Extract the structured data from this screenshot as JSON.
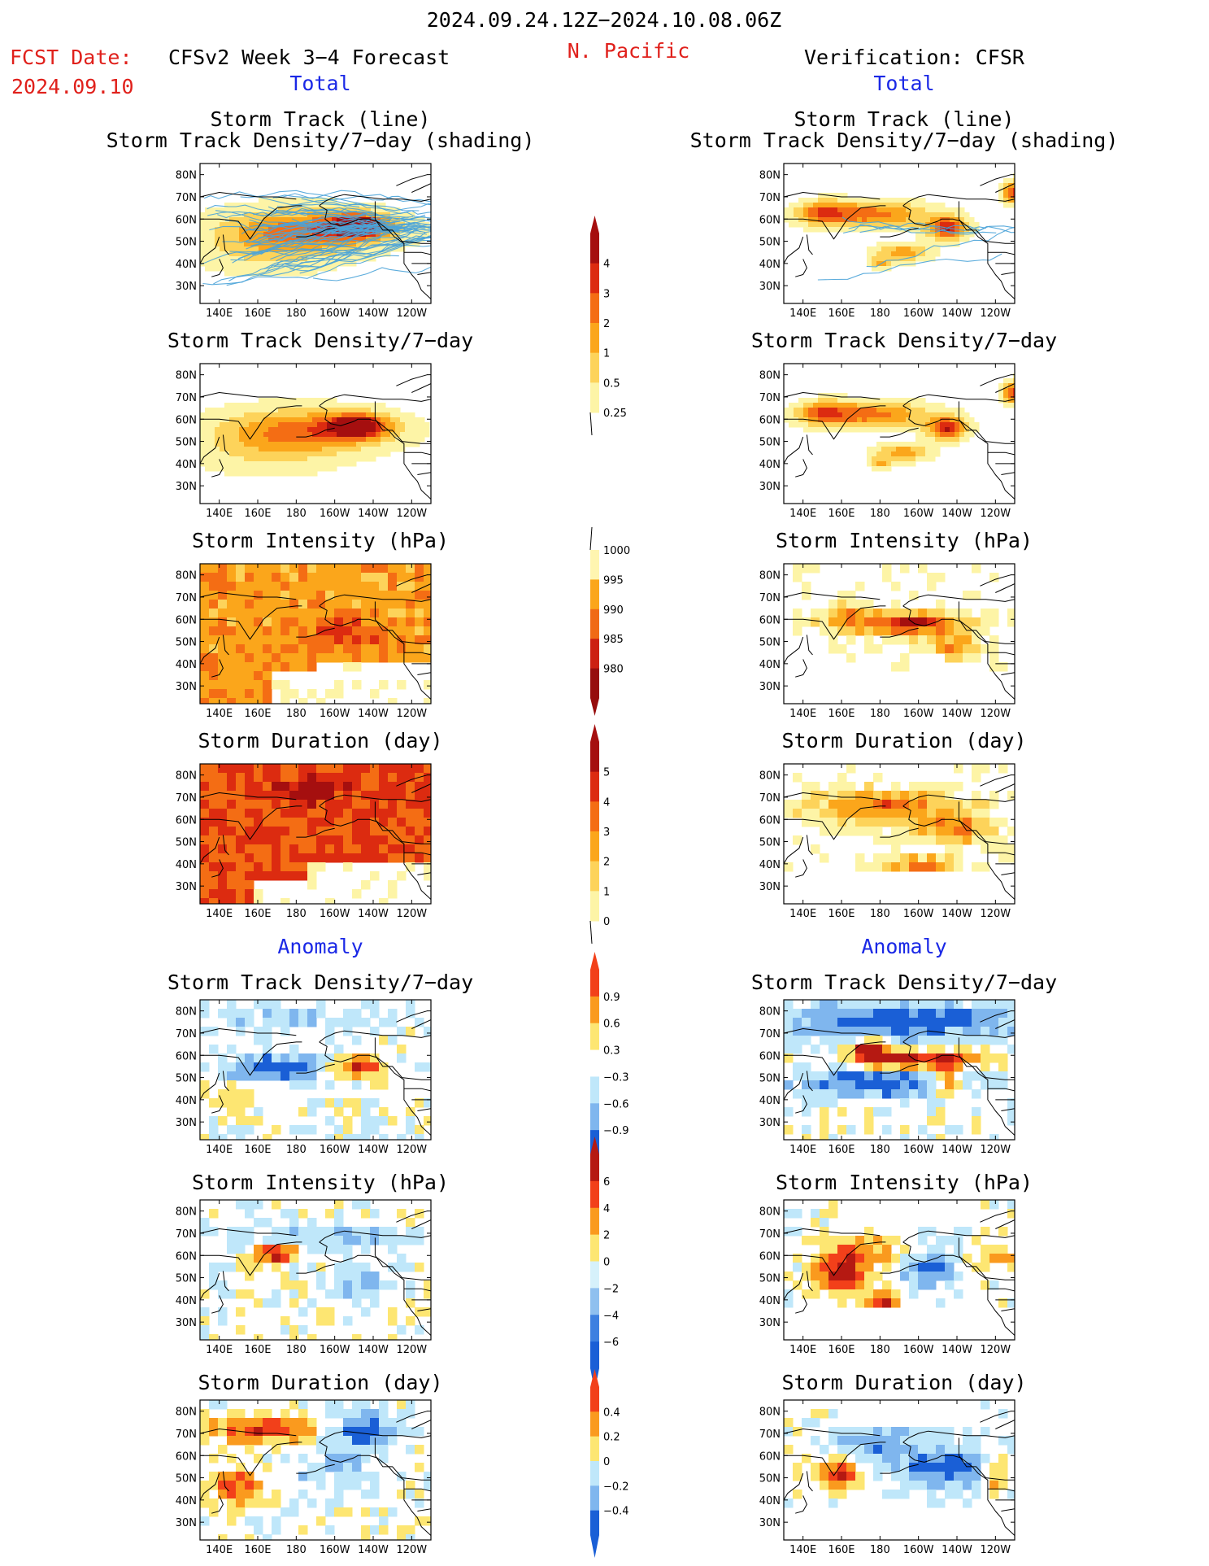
{
  "header": {
    "date_range": "2024.09.24.12Z−2024.10.08.06Z",
    "region": "N. Pacific",
    "fcst_label": "FCST Date:",
    "fcst_date": "2024.09.10",
    "left_title": "CFSv2 Week 3−4 Forecast",
    "right_title": "Verification: CFSR"
  },
  "sections": {
    "total": "Total",
    "anomaly": "Anomaly"
  },
  "panel_titles": {
    "track_line": "Storm Track (line)",
    "track_shading": "Storm Track Density/7−day (shading)",
    "density": "Storm Track Density/7−day",
    "intensity": "Storm Intensity (hPa)",
    "duration": "Storm Duration (day)"
  },
  "axes": {
    "lat_labels": [
      "80N",
      "70N",
      "60N",
      "50N",
      "40N",
      "30N"
    ],
    "lon_labels": [
      "140E",
      "160E",
      "180",
      "160W",
      "140W",
      "120W"
    ]
  },
  "colorbars": [
    {
      "id": "density",
      "labels": [
        "4",
        "3",
        "2",
        "1",
        "0.5",
        "0.25"
      ],
      "colors": [
        "#a50f0f",
        "#dc2b10",
        "#f46d14",
        "#fba61b",
        "#fdd35a",
        "#fdf4a6"
      ]
    },
    {
      "id": "intensity",
      "labels": [
        "1000",
        "995",
        "990",
        "985",
        "980"
      ],
      "colors": [
        "#fff5b0",
        "#fba61b",
        "#f06a16",
        "#cc2012",
        "#960d0d"
      ]
    },
    {
      "id": "duration",
      "labels": [
        "5",
        "4",
        "3",
        "2",
        "1",
        "0"
      ],
      "colors": [
        "#a50f0f",
        "#dc2b10",
        "#f46d14",
        "#fba61b",
        "#fdd35a",
        "#fdf4a6"
      ]
    },
    {
      "id": "density_anom",
      "labels": [
        "0.9",
        "0.6",
        "0.3",
        "−0.3",
        "−0.6",
        "−0.9"
      ],
      "colors": [
        "#f2401a",
        "#fa9a1e",
        "#fde672",
        "#ffffff",
        "#bfe7fa",
        "#7fb6ee",
        "#1a5fd6"
      ]
    },
    {
      "id": "intensity_anom",
      "labels": [
        "6",
        "4",
        "2",
        "0",
        "−2",
        "−4",
        "−6"
      ],
      "colors": [
        "#b51912",
        "#f2401a",
        "#fa9a1e",
        "#fde672",
        "#d6f1fb",
        "#8fc0ef",
        "#3d80e0",
        "#1a5fd6"
      ]
    },
    {
      "id": "duration_anom",
      "labels": [
        "0.4",
        "0.2",
        "0",
        "−0.2",
        "−0.4"
      ],
      "colors": [
        "#f2401a",
        "#fa9a1e",
        "#fde672",
        "#bfe7fa",
        "#7fb6ee",
        "#1a5fd6"
      ]
    }
  ]
}
